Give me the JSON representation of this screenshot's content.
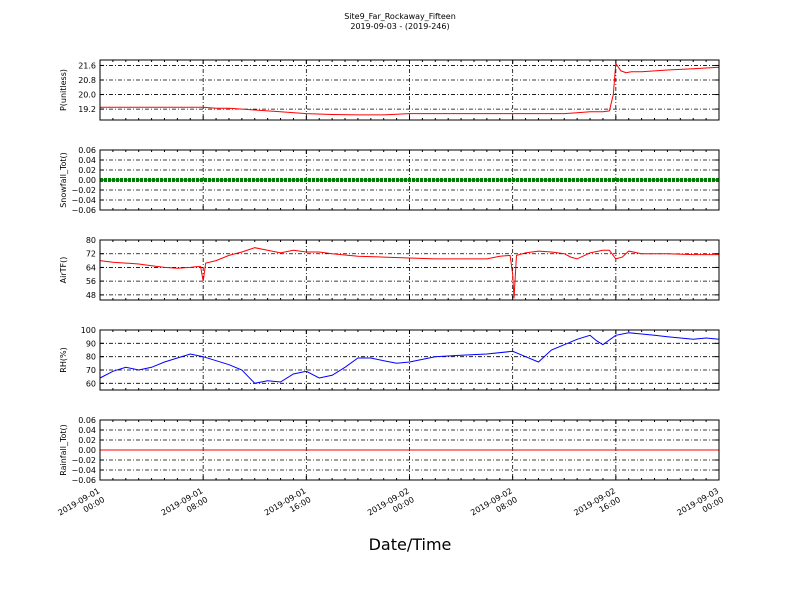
{
  "title": "Site9_Far_Rockaway_Fifteen",
  "subtitle": "2019-09-03 - (2019-246)",
  "xlabel": "Date/Time",
  "x_ticks": [
    {
      "t": 0,
      "l1": "2019-09-01",
      "l2": "00:00"
    },
    {
      "t": 8,
      "l1": "2019-09-01",
      "l2": "08:00"
    },
    {
      "t": 16,
      "l1": "2019-09-01",
      "l2": "16:00"
    },
    {
      "t": 24,
      "l1": "2019-09-02",
      "l2": "00:00"
    },
    {
      "t": 32,
      "l1": "2019-09-02",
      "l2": "08:00"
    },
    {
      "t": 40,
      "l1": "2019-09-02",
      "l2": "16:00"
    },
    {
      "t": 48,
      "l1": "2019-09-03",
      "l2": "00:00"
    }
  ],
  "chart_data": [
    {
      "type": "line",
      "ylabel": "P(unitless)",
      "ylim": [
        18.6,
        21.9
      ],
      "yticks": [
        19.2,
        20.0,
        20.8,
        21.6
      ],
      "ytick_labels": [
        "19.2",
        "20.0",
        "20.8",
        "21.6"
      ],
      "color": "#ff0000",
      "grid": true,
      "x_hours": [
        0,
        2,
        4,
        6,
        8,
        9,
        10,
        12,
        14,
        16,
        18,
        20,
        22,
        24,
        26,
        28,
        30,
        32,
        34,
        36,
        37,
        38,
        39,
        39.5,
        39.8,
        40,
        40.4,
        40.8,
        41.2,
        42,
        44,
        46,
        48
      ],
      "y": [
        19.3,
        19.3,
        19.3,
        19.3,
        19.3,
        19.25,
        19.25,
        19.15,
        19.05,
        18.95,
        18.9,
        18.88,
        18.88,
        18.95,
        18.95,
        18.95,
        18.95,
        18.95,
        18.95,
        18.95,
        19.0,
        19.05,
        19.05,
        19.1,
        20.0,
        21.7,
        21.3,
        21.2,
        21.25,
        21.25,
        21.35,
        21.42,
        21.5
      ]
    },
    {
      "type": "line",
      "ylabel": "Snowfall_Tot()",
      "ylim": [
        -0.06,
        0.06
      ],
      "yticks": [
        -0.06,
        -0.04,
        -0.02,
        0.0,
        0.02,
        0.04,
        0.06
      ],
      "ytick_labels": [
        "−0.06",
        "−0.04",
        "−0.02",
        "0.00",
        "0.02",
        "0.04",
        "0.06"
      ],
      "color": "#008000",
      "grid": true,
      "x_hours": [
        0,
        48
      ],
      "y": [
        0,
        0
      ]
    },
    {
      "type": "line",
      "ylabel": "AirTF()",
      "ylim": [
        45,
        80
      ],
      "yticks": [
        48,
        56,
        64,
        72,
        80
      ],
      "ytick_labels": [
        "48",
        "56",
        "64",
        "72",
        "80"
      ],
      "color": "#ff0000",
      "grid": true,
      "x_hours": [
        0,
        1,
        2,
        3,
        4,
        5,
        6,
        7,
        7.5,
        7.8,
        8.0,
        8.2,
        9,
        10,
        11,
        12,
        13,
        14,
        15,
        16,
        17,
        18,
        20,
        22,
        24,
        26,
        28,
        30,
        31,
        31.8,
        32.0,
        32.1,
        32.3,
        33,
        34,
        35,
        36,
        36.5,
        37,
        38,
        39,
        39.5,
        40,
        40.5,
        41,
        42,
        44,
        46,
        48
      ],
      "y": [
        68,
        67,
        66.5,
        66,
        65,
        64,
        63.5,
        64,
        64.5,
        64.5,
        56,
        66.5,
        68,
        71,
        73,
        75.5,
        74,
        72.5,
        74,
        73,
        73,
        72,
        70.5,
        70,
        69.5,
        69,
        69,
        69,
        70.5,
        71,
        60,
        46,
        71,
        72.5,
        73.5,
        73,
        72,
        70,
        69,
        72.5,
        74,
        74,
        69,
        70,
        73.5,
        72,
        72,
        71.5,
        71.5
      ]
    },
    {
      "type": "line",
      "ylabel": "RH(%)",
      "ylim": [
        55,
        100
      ],
      "yticks": [
        60,
        70,
        80,
        90,
        100
      ],
      "ytick_labels": [
        "60",
        "70",
        "80",
        "90",
        "100"
      ],
      "color": "#0000ff",
      "grid": true,
      "x_hours": [
        0,
        1,
        2,
        3,
        4,
        5,
        6,
        7,
        8,
        9,
        10,
        11,
        11.5,
        12,
        13,
        14,
        15,
        16,
        17,
        18,
        19,
        20,
        21,
        22,
        23,
        24,
        26,
        28,
        30,
        32,
        33,
        34,
        35,
        36,
        37,
        38,
        38.5,
        39,
        40,
        41,
        42,
        43,
        44,
        45,
        46,
        47,
        48
      ],
      "y": [
        64,
        69,
        72,
        70,
        72,
        76,
        79,
        82,
        80,
        77,
        74,
        70,
        65,
        60,
        62,
        61,
        67,
        69,
        64,
        66,
        72,
        79,
        79,
        77,
        75,
        76,
        80,
        81,
        82,
        84,
        80,
        76,
        85,
        89,
        93,
        96,
        92,
        89,
        96,
        98,
        97,
        96,
        95,
        94,
        93,
        94,
        93
      ]
    },
    {
      "type": "line",
      "ylabel": "Rainfall_Tot()",
      "ylim": [
        -0.06,
        0.06
      ],
      "yticks": [
        -0.06,
        -0.04,
        -0.02,
        0.0,
        0.02,
        0.04,
        0.06
      ],
      "ytick_labels": [
        "−0.06",
        "−0.04",
        "−0.02",
        "0.00",
        "0.02",
        "0.04",
        "0.06"
      ],
      "color": "#ff0000",
      "grid": true,
      "x_hours": [
        0,
        48
      ],
      "y": [
        0,
        0
      ]
    }
  ]
}
